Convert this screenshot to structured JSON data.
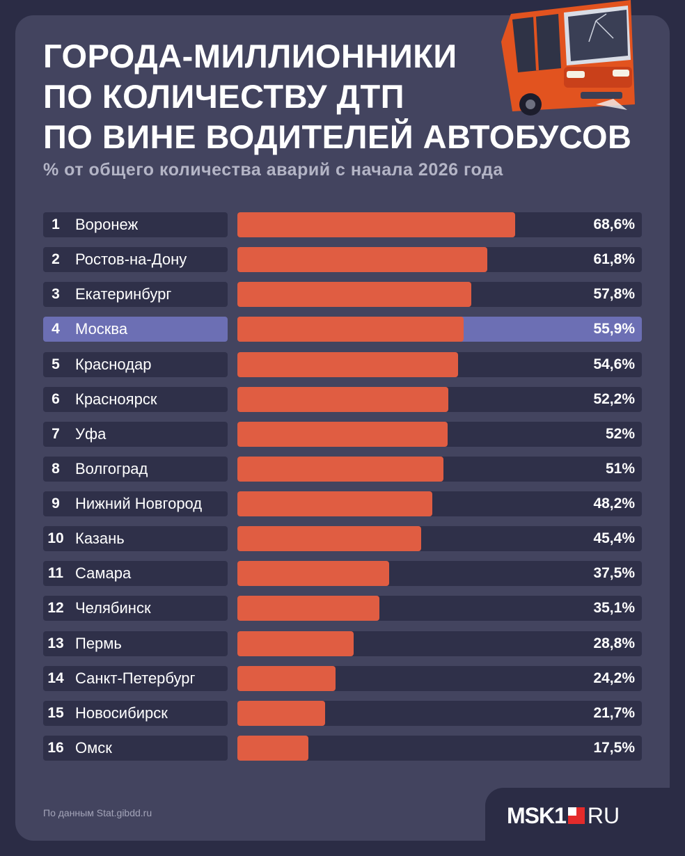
{
  "header": {
    "title_lines": [
      "Города-миллионники",
      "по количеству ДТП",
      "по вине водителей автобусов"
    ],
    "subtitle": "% от общего количества аварий с начала 2026 года"
  },
  "chart_data": {
    "type": "bar",
    "orientation": "horizontal",
    "max_value": 100,
    "value_suffix": "%",
    "highlight": "Москва",
    "rows": [
      {
        "rank": "1",
        "city": "Воронеж",
        "value": 68.6,
        "label": "68,6%"
      },
      {
        "rank": "2",
        "city": "Ростов-на-Дону",
        "value": 61.8,
        "label": "61,8%"
      },
      {
        "rank": "3",
        "city": "Екатеринбург",
        "value": 57.8,
        "label": "57,8%"
      },
      {
        "rank": "4",
        "city": "Москва",
        "value": 55.9,
        "label": "55,9%"
      },
      {
        "rank": "5",
        "city": "Краснодар",
        "value": 54.6,
        "label": "54,6%"
      },
      {
        "rank": "6",
        "city": "Красноярск",
        "value": 52.2,
        "label": "52,2%"
      },
      {
        "rank": "7",
        "city": "Уфа",
        "value": 52,
        "label": "52%"
      },
      {
        "rank": "8",
        "city": "Волгоград",
        "value": 51,
        "label": "51%"
      },
      {
        "rank": "9",
        "city": "Нижний Новгород",
        "value": 48.2,
        "label": "48,2%"
      },
      {
        "rank": "10",
        "city": "Казань",
        "value": 45.4,
        "label": "45,4%"
      },
      {
        "rank": "11",
        "city": "Самара",
        "value": 37.5,
        "label": "37,5%"
      },
      {
        "rank": "12",
        "city": "Челябинск",
        "value": 35.1,
        "label": "35,1%"
      },
      {
        "rank": "13",
        "city": "Пермь",
        "value": 28.8,
        "label": "28,8%"
      },
      {
        "rank": "14",
        "city": "Санкт-Петербург",
        "value": 24.2,
        "label": "24,2%"
      },
      {
        "rank": "15",
        "city": "Новосибирск",
        "value": 21.7,
        "label": "21,7%"
      },
      {
        "rank": "16",
        "city": "Омск",
        "value": 17.5,
        "label": "17,5%"
      }
    ]
  },
  "footer": {
    "source": "По данным Stat.gibdd.ru",
    "logo_left": "MSK1",
    "logo_right": "RU"
  },
  "colors": {
    "background": "#2b2c45",
    "panel": "#43445f",
    "bar": "#e05d42",
    "track": "#2f3049",
    "highlight": "#6c6fb4",
    "logo_red": "#e42b2b"
  },
  "icons": {
    "bus": "bus-illustration",
    "logo_mark": "red-square-logo-mark"
  }
}
